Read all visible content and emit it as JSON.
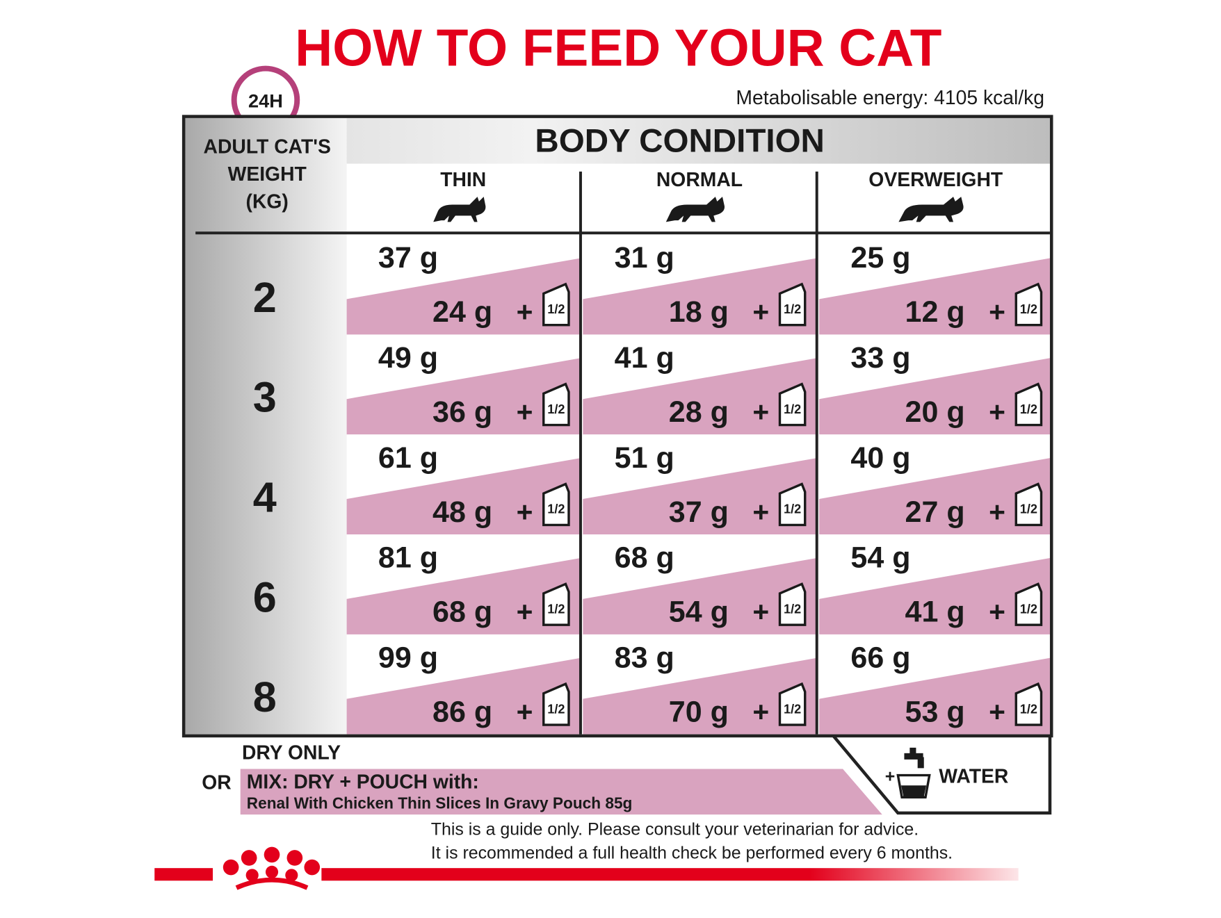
{
  "header": {
    "title": "HOW TO FEED YOUR CAT",
    "badge": "24H",
    "energy": "Metabolisable energy: 4105 kcal/kg"
  },
  "table": {
    "group_header": "BODY CONDITION",
    "weight_header": [
      "ADULT CAT'S",
      "WEIGHT",
      "(KG)"
    ],
    "columns": [
      "THIN",
      "NORMAL",
      "OVERWEIGHT"
    ],
    "plus": "+",
    "pouch_fraction": "1/2",
    "rows": [
      {
        "weight": "2",
        "cells": [
          {
            "dry": "37 g",
            "mix": "24 g"
          },
          {
            "dry": "31 g",
            "mix": "18 g"
          },
          {
            "dry": "25 g",
            "mix": "12 g"
          }
        ]
      },
      {
        "weight": "3",
        "cells": [
          {
            "dry": "49 g",
            "mix": "36 g"
          },
          {
            "dry": "41 g",
            "mix": "28 g"
          },
          {
            "dry": "33 g",
            "mix": "20 g"
          }
        ]
      },
      {
        "weight": "4",
        "cells": [
          {
            "dry": "61 g",
            "mix": "48 g"
          },
          {
            "dry": "51 g",
            "mix": "37 g"
          },
          {
            "dry": "40 g",
            "mix": "27 g"
          }
        ]
      },
      {
        "weight": "6",
        "cells": [
          {
            "dry": "81 g",
            "mix": "68 g"
          },
          {
            "dry": "68 g",
            "mix": "54 g"
          },
          {
            "dry": "54 g",
            "mix": "41 g"
          }
        ]
      },
      {
        "weight": "8",
        "cells": [
          {
            "dry": "99 g",
            "mix": "86 g"
          },
          {
            "dry": "83 g",
            "mix": "70 g"
          },
          {
            "dry": "66 g",
            "mix": "53 g"
          }
        ]
      }
    ]
  },
  "legend": {
    "dry_only": "DRY ONLY",
    "or": "OR",
    "mix": "MIX: DRY + POUCH with:",
    "pouch": "Renal With Chicken Thin Slices In Gravy Pouch 85g",
    "water_plus": "+",
    "water": "WATER"
  },
  "footer": {
    "notes": [
      "This is a guide only. Please consult your veterinarian for advice.",
      "It is recommended a full health check be performed every 6 months."
    ]
  }
}
